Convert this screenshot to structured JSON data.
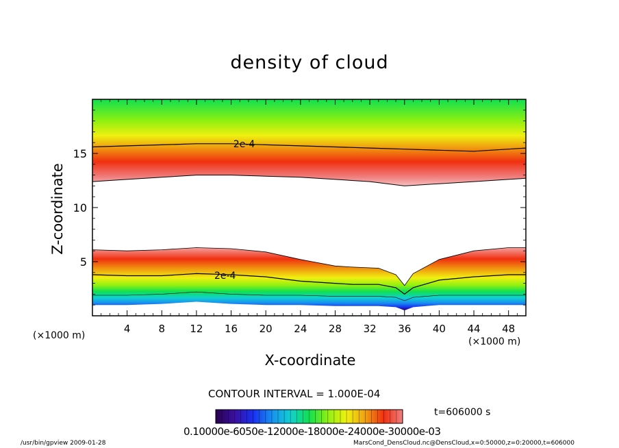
{
  "chart_data": {
    "type": "heatmap",
    "title": "density of cloud",
    "xlabel": "X-coordinate",
    "ylabel": "Z-coordinate",
    "x_unit": "(×1000 m)",
    "xlim": [
      0,
      50
    ],
    "ylim": [
      0,
      20
    ],
    "xticks": [
      4,
      8,
      12,
      16,
      20,
      24,
      28,
      32,
      36,
      40,
      44,
      48
    ],
    "yticks": [
      5,
      10,
      15
    ],
    "contour_label": "2e-4",
    "contour_interval": "CONTOUR INTERVAL = 1.000E-04",
    "time_label": "t=606000 s",
    "colorbar_tick_text": "0.10000e-6050e-12000e-18000e-24000e-30000e-03",
    "upper_band": {
      "x": [
        0,
        4,
        8,
        12,
        16,
        20,
        24,
        28,
        32,
        36,
        40,
        44,
        48,
        50
      ],
      "bottom": [
        12.4,
        12.6,
        12.8,
        13.0,
        13.0,
        12.9,
        12.8,
        12.6,
        12.4,
        12.0,
        12.2,
        12.4,
        12.6,
        12.7
      ],
      "contour_2e4": [
        15.6,
        15.7,
        15.8,
        15.9,
        15.9,
        15.8,
        15.7,
        15.6,
        15.5,
        15.4,
        15.3,
        15.2,
        15.4,
        15.5
      ]
    },
    "lower_band": {
      "x": [
        0,
        4,
        8,
        12,
        16,
        20,
        24,
        28,
        30,
        33,
        35,
        36,
        37,
        40,
        44,
        48,
        50
      ],
      "top": [
        6.1,
        6.0,
        6.1,
        6.3,
        6.2,
        5.9,
        5.2,
        4.6,
        4.5,
        4.4,
        3.8,
        2.8,
        3.9,
        5.2,
        6.0,
        6.3,
        6.3
      ],
      "contour_2e4": [
        3.8,
        3.7,
        3.7,
        3.9,
        3.8,
        3.6,
        3.2,
        3.0,
        2.9,
        2.9,
        2.6,
        2.0,
        2.6,
        3.3,
        3.6,
        3.8,
        3.8
      ],
      "bottom": [
        1.0,
        1.0,
        1.1,
        1.3,
        1.1,
        1.0,
        1.0,
        0.9,
        0.9,
        0.9,
        0.8,
        0.5,
        0.8,
        1.0,
        1.0,
        1.0,
        1.0
      ]
    },
    "colorscale": [
      "#2a0050",
      "#3a10a0",
      "#1830f0",
      "#1890f0",
      "#10d0d0",
      "#10e050",
      "#90f010",
      "#f0f010",
      "#f0a010",
      "#f03010",
      "#f08080"
    ]
  },
  "footer": {
    "left": "/usr/bin/gpview   2009-01-28",
    "right": "MarsCond_DensCloud.nc@DensCloud,x=0:50000,z=0:20000,t=606000"
  }
}
